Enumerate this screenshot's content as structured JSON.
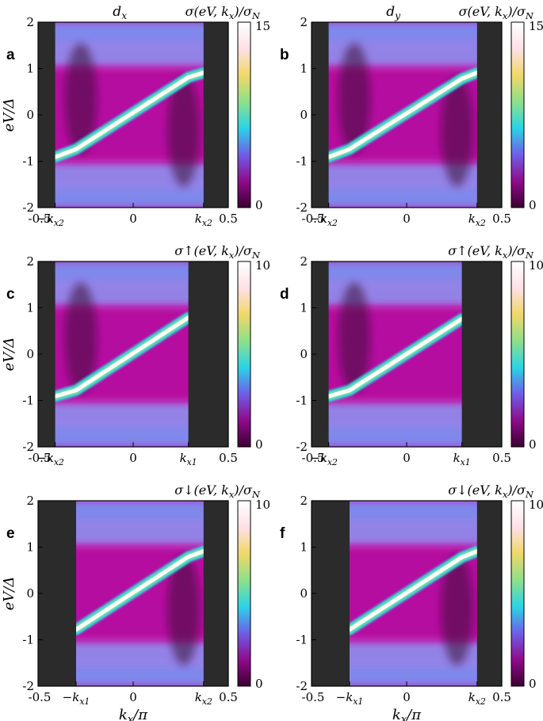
{
  "chart_data": [
    {
      "type": "heatmap",
      "panel": "a",
      "title": "d_x",
      "colorbar_label": "σ(eV, k_x)/σ_N",
      "colorbar_range": [
        0,
        15
      ],
      "colorbar_ticks": [
        "15",
        "0"
      ],
      "xlim": [
        -0.5,
        0.5
      ],
      "ylim": [
        -2,
        2
      ],
      "x_tick_labels": [
        "-0.5",
        "−k_x2",
        "0",
        "k_x2",
        "0.5"
      ],
      "y_tick_labels": [
        "2",
        "1",
        "0",
        "-1",
        "-2"
      ],
      "xlabel": "",
      "ylabel": "eV/Δ",
      "dark_regions_x": [
        [
          -0.5,
          -0.41
        ],
        [
          0.37,
          0.5
        ]
      ],
      "notch_positions_x": [
        -0.3,
        0.29
      ],
      "ridge": [
        [
          -0.41,
          -0.91
        ],
        [
          -0.3,
          -0.74
        ],
        [
          0.29,
          0.81
        ],
        [
          0.37,
          0.91
        ]
      ],
      "colormap": [
        "#3a0030",
        "#8f0b8b",
        "#6f5ee8",
        "#2ad4e6",
        "#8ee08a",
        "#f0d868",
        "#ffe0e8",
        "#ffffff"
      ]
    },
    {
      "type": "heatmap",
      "panel": "b",
      "title": "d_y",
      "colorbar_label": "σ(eV, k_x)/σ_N",
      "colorbar_range": [
        0,
        15
      ],
      "colorbar_ticks": [
        "15",
        "0"
      ],
      "xlim": [
        -0.5,
        0.5
      ],
      "ylim": [
        -2,
        2
      ],
      "x_tick_labels": [
        "-0.5",
        "−k_x2",
        "0",
        "k_x2",
        "0.5"
      ],
      "y_tick_labels": [
        "2",
        "1",
        "0",
        "-1",
        "-2"
      ],
      "xlabel": "",
      "ylabel": "",
      "dark_regions_x": [
        [
          -0.5,
          -0.41
        ],
        [
          0.37,
          0.5
        ]
      ],
      "notch_positions_x": [
        -0.3,
        0.29
      ],
      "ridge": [
        [
          -0.41,
          -0.91
        ],
        [
          -0.3,
          -0.74
        ],
        [
          0.29,
          0.78
        ],
        [
          0.37,
          0.91
        ]
      ],
      "colormap": [
        "#3a0030",
        "#8f0b8b",
        "#6f5ee8",
        "#2ad4e6",
        "#8ee08a",
        "#f0d868",
        "#ffe0e8",
        "#ffffff"
      ]
    },
    {
      "type": "heatmap",
      "panel": "c",
      "title": "",
      "colorbar_label": "σ↑(eV, k_x)/σ_N",
      "colorbar_range": [
        0,
        10
      ],
      "colorbar_ticks": [
        "10",
        "0"
      ],
      "xlim": [
        -0.5,
        0.5
      ],
      "ylim": [
        -2,
        2
      ],
      "x_tick_labels": [
        "-0.5",
        "−k_x2",
        "0",
        "k_x1",
        "0.5"
      ],
      "y_tick_labels": [
        "2",
        "1",
        "0",
        "-1",
        "-2"
      ],
      "xlabel": "",
      "ylabel": "eV/Δ",
      "dark_regions_x": [
        [
          -0.5,
          -0.41
        ],
        [
          0.29,
          0.5
        ]
      ],
      "notch_positions_x": [
        -0.3
      ],
      "ridge": [
        [
          -0.41,
          -0.91
        ],
        [
          -0.3,
          -0.78
        ],
        [
          0.29,
          0.79
        ]
      ],
      "colormap": [
        "#3a0030",
        "#8f0b8b",
        "#6f5ee8",
        "#2ad4e6",
        "#8ee08a",
        "#f0d868",
        "#ffe0e8",
        "#ffffff"
      ]
    },
    {
      "type": "heatmap",
      "panel": "d",
      "title": "",
      "colorbar_label": "σ↑(eV, k_x)/σ_N",
      "colorbar_range": [
        0,
        10
      ],
      "colorbar_ticks": [
        "10",
        "0"
      ],
      "xlim": [
        -0.5,
        0.5
      ],
      "ylim": [
        -2,
        2
      ],
      "x_tick_labels": [
        "-0.5",
        "−k_x2",
        "0",
        "k_x1",
        "0.5"
      ],
      "y_tick_labels": [
        "2",
        "1",
        "0",
        "-1",
        "-2"
      ],
      "xlabel": "",
      "ylabel": "",
      "dark_regions_x": [
        [
          -0.5,
          -0.41
        ],
        [
          0.29,
          0.5
        ]
      ],
      "notch_positions_x": [
        -0.3
      ],
      "ridge": [
        [
          -0.41,
          -0.91
        ],
        [
          -0.3,
          -0.78
        ],
        [
          0.29,
          0.76
        ]
      ],
      "colormap": [
        "#3a0030",
        "#8f0b8b",
        "#6f5ee8",
        "#2ad4e6",
        "#8ee08a",
        "#f0d868",
        "#ffe0e8",
        "#ffffff"
      ]
    },
    {
      "type": "heatmap",
      "panel": "e",
      "title": "",
      "colorbar_label": "σ↓(eV, k_x)/σ_N",
      "colorbar_range": [
        0,
        10
      ],
      "colorbar_ticks": [
        "10",
        "0"
      ],
      "xlim": [
        -0.5,
        0.5
      ],
      "ylim": [
        -2,
        2
      ],
      "x_tick_labels": [
        "-0.5",
        "−k_x1",
        "0",
        "k_x2",
        "0.5"
      ],
      "y_tick_labels": [
        "2",
        "1",
        "0",
        "-1",
        "-2"
      ],
      "xlabel": "k_x/π",
      "ylabel": "eV/Δ",
      "dark_regions_x": [
        [
          -0.5,
          -0.3
        ],
        [
          0.37,
          0.5
        ]
      ],
      "notch_positions_x": [
        0.29
      ],
      "ridge": [
        [
          -0.3,
          -0.78
        ],
        [
          0.29,
          0.79
        ],
        [
          0.37,
          0.91
        ]
      ],
      "colormap": [
        "#3a0030",
        "#8f0b8b",
        "#6f5ee8",
        "#2ad4e6",
        "#8ee08a",
        "#f0d868",
        "#ffe0e8",
        "#ffffff"
      ]
    },
    {
      "type": "heatmap",
      "panel": "f",
      "title": "",
      "colorbar_label": "σ↓(eV, k_x)/σ_N",
      "colorbar_range": [
        0,
        10
      ],
      "colorbar_ticks": [
        "10",
        "0"
      ],
      "xlim": [
        -0.5,
        0.5
      ],
      "ylim": [
        -2,
        2
      ],
      "x_tick_labels": [
        "-0.5",
        "−k_x1",
        "0",
        "k_x2",
        "0.5"
      ],
      "y_tick_labels": [
        "2",
        "1",
        "0",
        "-1",
        "-2"
      ],
      "xlabel": "k_x/π",
      "ylabel": "",
      "dark_regions_x": [
        [
          -0.5,
          -0.3
        ],
        [
          0.37,
          0.5
        ]
      ],
      "notch_positions_x": [
        0.29
      ],
      "ridge": [
        [
          -0.3,
          -0.78
        ],
        [
          0.29,
          0.78
        ],
        [
          0.37,
          0.91
        ]
      ],
      "colormap": [
        "#3a0030",
        "#8f0b8b",
        "#6f5ee8",
        "#2ad4e6",
        "#8ee08a",
        "#f0d868",
        "#ffe0e8",
        "#ffffff"
      ]
    }
  ]
}
